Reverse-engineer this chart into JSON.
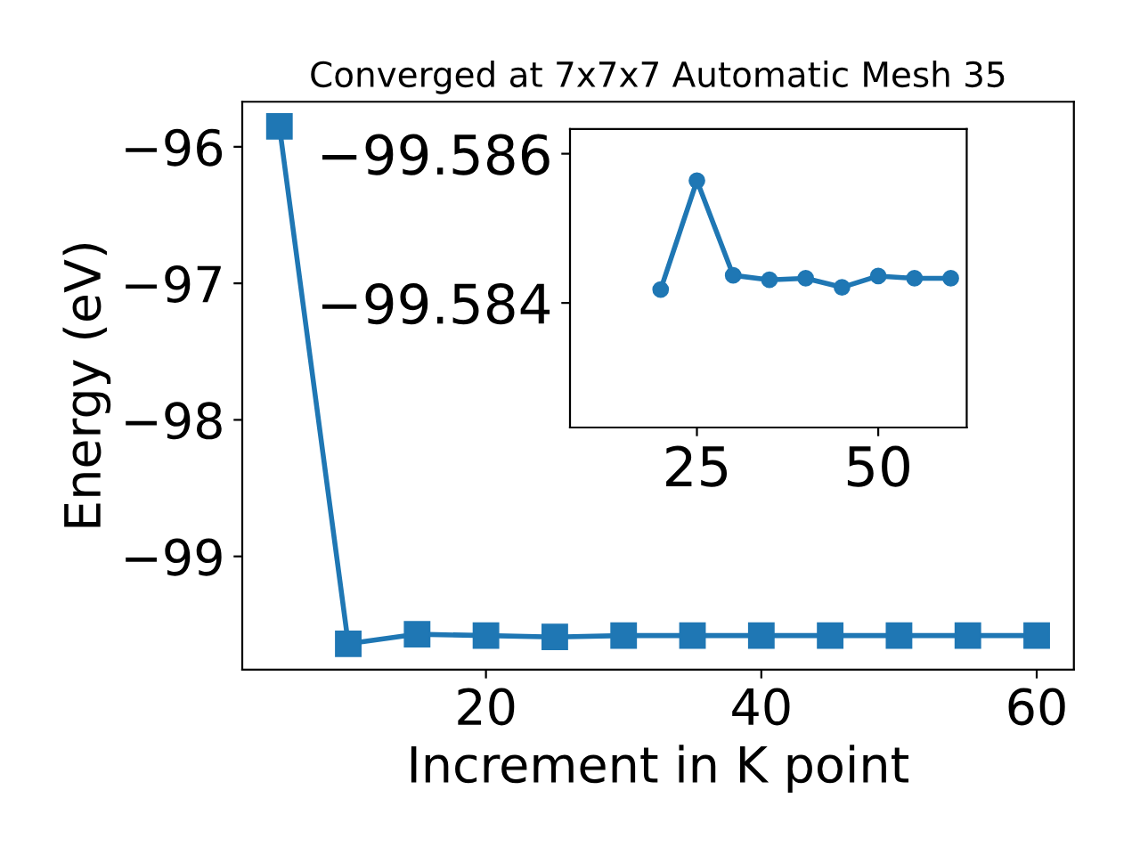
{
  "chart_data": [
    {
      "type": "line",
      "title": "Converged at 7x7x7 Automatic Mesh 35",
      "xlabel": "Increment in K point",
      "ylabel": "Energy (eV)",
      "x": [
        5,
        10,
        15,
        20,
        25,
        30,
        35,
        40,
        45,
        50,
        55,
        60
      ],
      "series": [
        {
          "color": "#1f77b4",
          "values": [
            -95.85,
            -99.64,
            -99.57,
            -99.58,
            -99.59,
            -99.58,
            -99.58,
            -99.58,
            -99.58,
            -99.58,
            -99.58,
            -99.58
          ]
        }
      ],
      "marker": "square",
      "line_style": "solid",
      "grid": false,
      "legend": false,
      "xlim": [
        2.3,
        62.7
      ],
      "ylim": [
        -99.83,
        -95.67
      ],
      "xticks": [
        20,
        40,
        60
      ],
      "yticks": [
        -99,
        -98,
        -97,
        -96
      ]
    },
    {
      "type": "line",
      "x": [
        20,
        25,
        30,
        35,
        40,
        45,
        50,
        55,
        60
      ],
      "series": [
        {
          "color": "#1f77b4",
          "values": [
            -99.58418,
            -99.58564,
            -99.58437,
            -99.58431,
            -99.58433,
            -99.58421,
            -99.58436,
            -99.58433,
            -99.58433
          ]
        }
      ],
      "marker": "circle",
      "line_style": "solid",
      "grid": false,
      "legend": false,
      "xlim": [
        7.5,
        62.2
      ],
      "ylim": [
        -99.58233,
        -99.58633
      ],
      "xticks": [
        25,
        50
      ],
      "yticks": [
        -99.586,
        -99.584
      ]
    }
  ]
}
